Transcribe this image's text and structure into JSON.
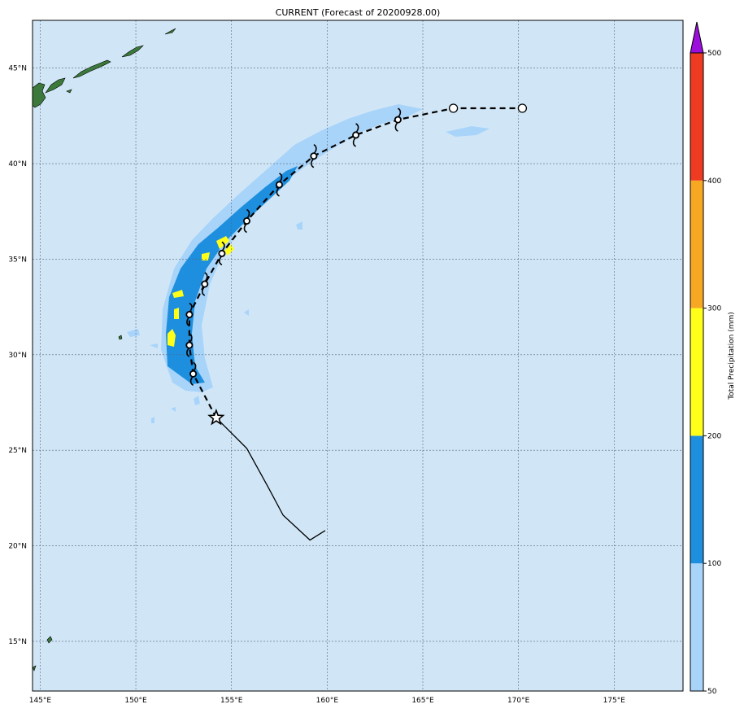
{
  "title": "CURRENT (Forecast of 20200928.00)",
  "map": {
    "ocean_color": "#d0e6f6",
    "land_color": "#3b7a3b",
    "grid_color": "#556677",
    "lon_range": [
      144.6,
      178.6
    ],
    "lat_range": [
      12.4,
      47.5
    ],
    "lon_ticks": [
      {
        "value": 145,
        "label": "145°E"
      },
      {
        "value": 150,
        "label": "150°E"
      },
      {
        "value": 155,
        "label": "155°E"
      },
      {
        "value": 160,
        "label": "160°E"
      },
      {
        "value": 165,
        "label": "165°E"
      },
      {
        "value": 170,
        "label": "170°E"
      },
      {
        "value": 175,
        "label": "175°E"
      }
    ],
    "lat_ticks": [
      {
        "value": 15,
        "label": "15°N"
      },
      {
        "value": 20,
        "label": "20°N"
      },
      {
        "value": 25,
        "label": "25°N"
      },
      {
        "value": 30,
        "label": "30°N"
      },
      {
        "value": 35,
        "label": "35°N"
      },
      {
        "value": 40,
        "label": "40°N"
      },
      {
        "value": 45,
        "label": "45°N"
      }
    ]
  },
  "track": {
    "past": [
      [
        159.9,
        20.8
      ],
      [
        159.1,
        20.3
      ],
      [
        157.7,
        21.6
      ],
      [
        156.9,
        23.1
      ],
      [
        155.8,
        25.1
      ],
      [
        154.2,
        26.7
      ]
    ],
    "current_position": [
      154.2,
      26.7
    ],
    "forecast": [
      [
        154.2,
        26.7
      ],
      [
        153.0,
        29.0
      ],
      [
        152.8,
        30.5
      ],
      [
        152.8,
        32.1
      ],
      [
        153.6,
        33.7
      ],
      [
        154.5,
        35.3
      ],
      [
        155.8,
        37.0
      ],
      [
        157.5,
        38.9
      ],
      [
        159.3,
        40.4
      ],
      [
        161.5,
        41.5
      ],
      [
        163.7,
        42.3
      ],
      [
        166.6,
        42.9
      ],
      [
        170.2,
        42.9
      ]
    ],
    "storm_points": [
      [
        153.0,
        29.0
      ],
      [
        152.8,
        30.5
      ],
      [
        152.8,
        32.1
      ],
      [
        153.6,
        33.7
      ],
      [
        154.5,
        35.3
      ],
      [
        155.8,
        37.0
      ],
      [
        157.5,
        38.9
      ],
      [
        159.3,
        40.4
      ],
      [
        161.5,
        41.5
      ],
      [
        163.7,
        42.3
      ]
    ],
    "post_tropical_points": [
      [
        166.6,
        42.9
      ],
      [
        170.2,
        42.9
      ]
    ]
  },
  "colorbar": {
    "label": "Total Precipitation (mm)",
    "levels": [
      {
        "value": 50,
        "label": "50"
      },
      {
        "value": 100,
        "label": "100"
      },
      {
        "value": 200,
        "label": "200"
      },
      {
        "value": 300,
        "label": "300"
      },
      {
        "value": 400,
        "label": "400"
      },
      {
        "value": 500,
        "label": "500"
      }
    ],
    "colors": [
      "#a9d4fa",
      "#1e8fde",
      "#ffff1a",
      "#f7a823",
      "#ee3b22"
    ],
    "extend_color": "#9b0edb"
  }
}
